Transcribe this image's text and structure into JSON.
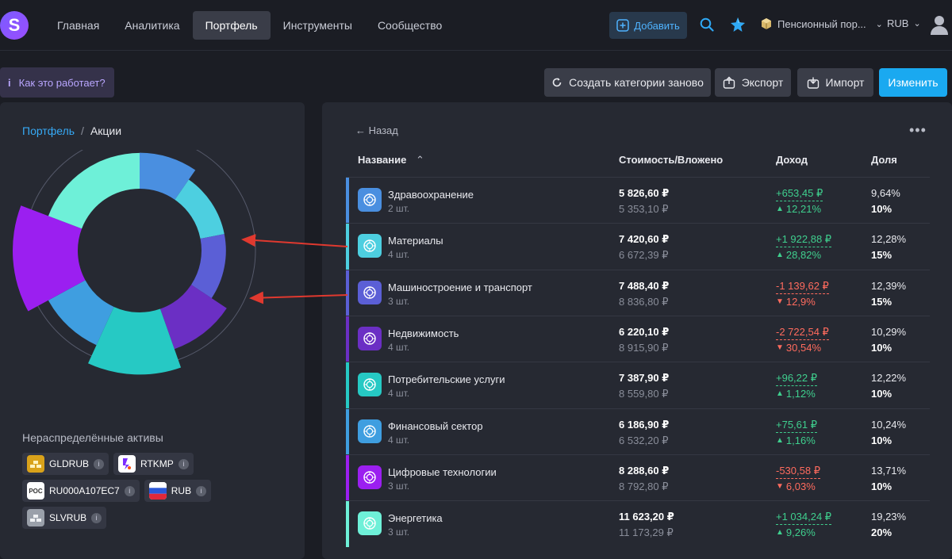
{
  "header": {
    "logo": "S",
    "nav": [
      {
        "label": "Главная",
        "active": false
      },
      {
        "label": "Аналитика",
        "active": false
      },
      {
        "label": "Портфель",
        "active": true
      },
      {
        "label": "Инструменты",
        "active": false
      },
      {
        "label": "Сообщество",
        "active": false
      }
    ],
    "add_label": "Добавить",
    "portfolio_label": "Пенсионный пор...",
    "currency_label": "RUB"
  },
  "toolbar": {
    "howto_label": "Как это работает?",
    "recreate_label": "Создать категории заново",
    "export_label": "Экспорт",
    "import_label": "Импорт",
    "change_label": "Изменить"
  },
  "left": {
    "breadcrumb_root": "Портфель",
    "breadcrumb_sep": "/",
    "breadcrumb_current": "Акции",
    "unallocated_title": "Нераспределённые активы",
    "assets": [
      {
        "label": "GLDRUB",
        "icon": "gold-bars-icon",
        "color": "#d9a21a"
      },
      {
        "label": "RTKMP",
        "icon": "rostelecom-logo-icon",
        "color": "#ffffff"
      },
      {
        "label": "RU000A107EC7",
        "icon": "ros-logo-icon",
        "color": "#ffffff",
        "icon_text": "РОС"
      },
      {
        "label": "RUB",
        "icon": "russia-flag-icon",
        "color": "#ffffff"
      },
      {
        "label": "SLVRUB",
        "icon": "silver-bars-icon",
        "color": "#9aa0aa"
      }
    ]
  },
  "table": {
    "back_label": "Назад",
    "more_label": "•••",
    "headers": {
      "name": "Название",
      "value": "Стоимость/Вложено",
      "income": "Доход",
      "share": "Доля"
    },
    "rows": [
      {
        "name": "Здравоохранение",
        "qty": "2 шт.",
        "value": "5 826,60 ₽",
        "invested": "5 353,10 ₽",
        "income": "+653,45 ₽",
        "income_pct": "12,21%",
        "trend": "up",
        "share": "9,64%",
        "target": "10%",
        "color": "#4a8fe0"
      },
      {
        "name": "Материалы",
        "qty": "4 шт.",
        "value": "7 420,60 ₽",
        "invested": "6 672,39 ₽",
        "income": "+1 922,88 ₽",
        "income_pct": "28,82%",
        "trend": "up",
        "share": "12,28%",
        "target": "15%",
        "color": "#4dcfe0"
      },
      {
        "name": "Машиностроение и транспорт",
        "qty": "3 шт.",
        "value": "7 488,40 ₽",
        "invested": "8 836,80 ₽",
        "income": "-1 139,62 ₽",
        "income_pct": "12,9%",
        "trend": "down",
        "share": "12,39%",
        "target": "15%",
        "color": "#5b5fd6"
      },
      {
        "name": "Недвижимость",
        "qty": "4 шт.",
        "value": "6 220,10 ₽",
        "invested": "8 915,90 ₽",
        "income": "-2 722,54 ₽",
        "income_pct": "30,54%",
        "trend": "down",
        "share": "10,29%",
        "target": "10%",
        "color": "#6b2fc4"
      },
      {
        "name": "Потребительские услуги",
        "qty": "4 шт.",
        "value": "7 387,90 ₽",
        "invested": "8 559,80 ₽",
        "income": "+96,22 ₽",
        "income_pct": "1,12%",
        "trend": "up",
        "share": "12,22%",
        "target": "10%",
        "color": "#26c9c4"
      },
      {
        "name": "Финансовый сектор",
        "qty": "4 шт.",
        "value": "6 186,90 ₽",
        "invested": "6 532,20 ₽",
        "income": "+75,61 ₽",
        "income_pct": "1,16%",
        "trend": "up",
        "share": "10,24%",
        "target": "10%",
        "color": "#3f9ee0"
      },
      {
        "name": "Цифровые технологии",
        "qty": "3 шт.",
        "value": "8 288,60 ₽",
        "invested": "8 792,80 ₽",
        "income": "-530,58 ₽",
        "income_pct": "6,03%",
        "trend": "down",
        "share": "13,71%",
        "target": "10%",
        "color": "#9b1ff0"
      },
      {
        "name": "Энергетика",
        "qty": "3 шт.",
        "value": "11 623,20 ₽",
        "invested": "11 173,29 ₽",
        "income": "+1 034,24 ₽",
        "income_pct": "9,26%",
        "trend": "up",
        "share": "19,23%",
        "target": "20%",
        "color": "#6ef0d8"
      }
    ]
  },
  "chart_data": {
    "type": "pie",
    "categories": [
      "Здравоохранение",
      "Материалы",
      "Машиностроение и транспорт",
      "Недвижимость",
      "Потребительские услуги",
      "Финансовый сектор",
      "Цифровые технологии",
      "Энергетика"
    ],
    "values": [
      9.64,
      12.28,
      12.39,
      10.29,
      12.22,
      10.24,
      13.71,
      19.23
    ],
    "targets": [
      10,
      15,
      15,
      10,
      10,
      10,
      10,
      20
    ],
    "colors": [
      "#4a8fe0",
      "#4dcfe0",
      "#5b5fd6",
      "#6b2fc4",
      "#26c9c4",
      "#3f9ee0",
      "#9b1ff0",
      "#6ef0d8"
    ],
    "donut": true
  },
  "annotations": {
    "arrow_color": "#e0392f"
  }
}
